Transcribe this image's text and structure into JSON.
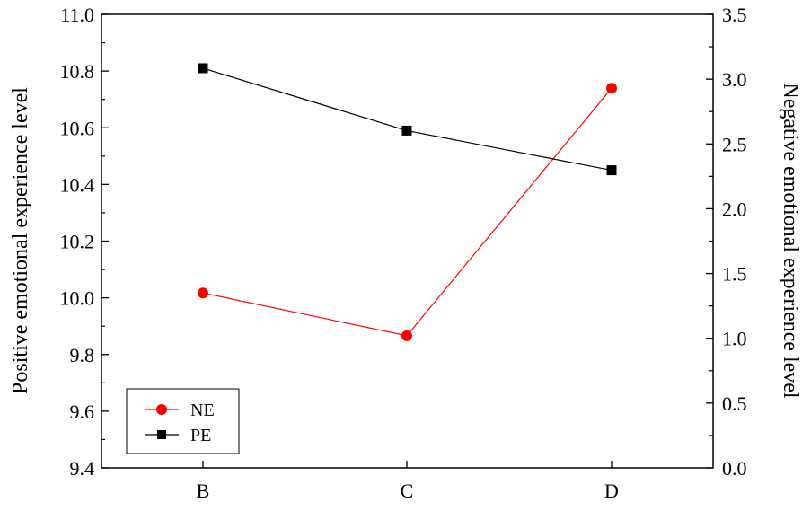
{
  "chart_data": {
    "type": "line",
    "categories": [
      "B",
      "C",
      "D"
    ],
    "left_axis": {
      "label": "Positive emotional experience level",
      "range": [
        9.4,
        11.0
      ],
      "ticks": [
        "9.4",
        "9.6",
        "9.8",
        "10.0",
        "10.2",
        "10.4",
        "10.6",
        "10.8",
        "11.0"
      ]
    },
    "right_axis": {
      "label": "Negative emotional experience level",
      "range": [
        0.0,
        3.5
      ],
      "ticks": [
        "0.0",
        "0.5",
        "1.0",
        "1.5",
        "2.0",
        "2.5",
        "3.0",
        "3.5"
      ]
    },
    "series": [
      {
        "name": "NE",
        "axis": "right",
        "color": "#ff0000",
        "marker": "circle",
        "values": [
          1.35,
          1.02,
          2.93
        ]
      },
      {
        "name": "PE",
        "axis": "left",
        "color": "#000000",
        "marker": "square",
        "values": [
          10.81,
          10.59,
          10.45
        ]
      }
    ],
    "legend": {
      "position": "bottom-left",
      "entries": [
        "NE",
        "PE"
      ]
    },
    "grid": false
  }
}
